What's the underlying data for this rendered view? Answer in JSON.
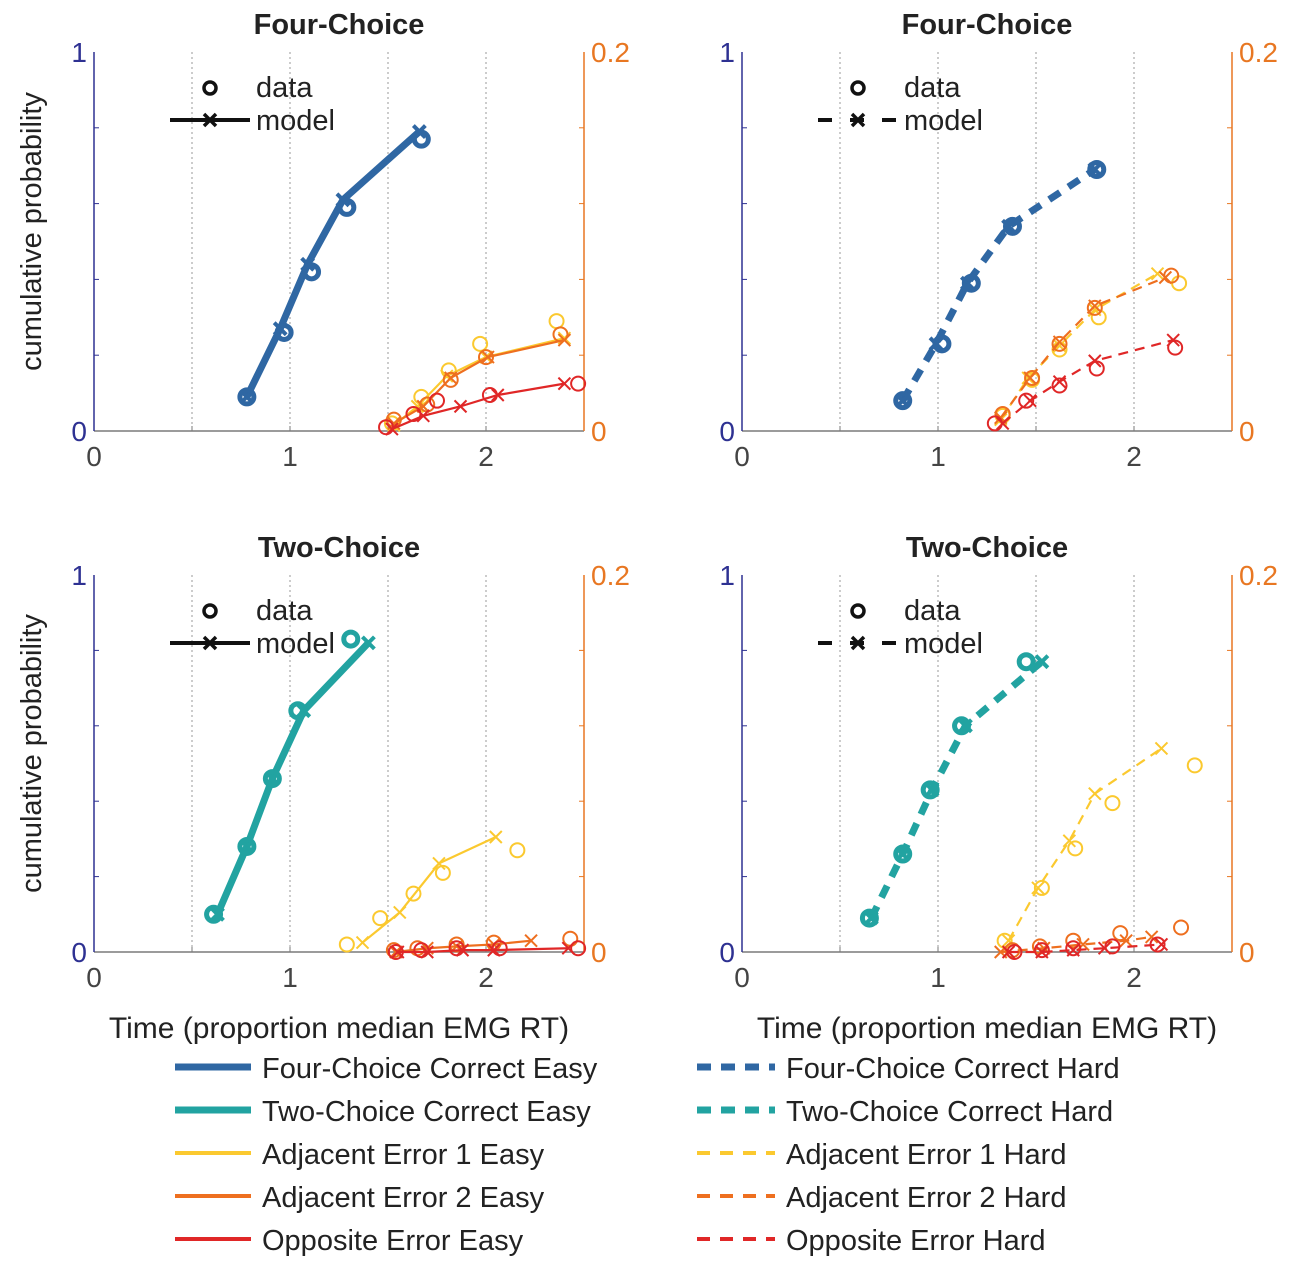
{
  "legend_top": {
    "data_label": "data",
    "model_label": "model"
  },
  "legend_bottom": [
    {
      "label": "Four-Choice Correct Easy",
      "color": "#2f67a3",
      "style": "solid-thick"
    },
    {
      "label": "Four-Choice Correct Hard",
      "color": "#2f67a3",
      "style": "dashed-thick"
    },
    {
      "label": "Two-Choice Correct Easy",
      "color": "#22a3a1",
      "style": "solid-thick"
    },
    {
      "label": "Two-Choice Correct Hard",
      "color": "#22a3a1",
      "style": "dashed-thick"
    },
    {
      "label": "Adjacent Error 1 Easy",
      "color": "#fbc92f",
      "style": "solid"
    },
    {
      "label": "Adjacent Error 1 Hard",
      "color": "#fbc92f",
      "style": "dashed"
    },
    {
      "label": "Adjacent Error 2 Easy",
      "color": "#ee6f1f",
      "style": "solid"
    },
    {
      "label": "Adjacent Error 2 Hard",
      "color": "#ee6f1f",
      "style": "dashed"
    },
    {
      "label": "Opposite Error Easy",
      "color": "#e02727",
      "style": "solid"
    },
    {
      "label": "Opposite Error Hard",
      "color": "#e02727",
      "style": "dashed"
    }
  ],
  "colors": {
    "four_correct": "#2f67a3",
    "two_correct": "#22a3a1",
    "adj1": "#fbc92f",
    "adj2": "#ee6f1f",
    "opposite": "#e02727",
    "left_axis": "#2e3192",
    "right_axis": "#e87722"
  },
  "chart_data": [
    {
      "type": "line",
      "title": "Four-Choice",
      "xlabel": "",
      "ylabel": "cumulative probability",
      "xlim": [
        0,
        2.5
      ],
      "ylim": [
        0,
        1
      ],
      "y2lim": [
        0,
        0.2
      ],
      "xticks": [
        "0",
        "1",
        "2"
      ],
      "yticks": [
        "0",
        "1"
      ],
      "y2ticks": [
        "0",
        "0.2"
      ],
      "line_style": "solid",
      "correct": {
        "color_key": "four_correct",
        "data": [
          [
            0.78,
            0.09
          ],
          [
            0.97,
            0.26
          ],
          [
            1.11,
            0.42
          ],
          [
            1.29,
            0.59
          ],
          [
            1.67,
            0.77
          ]
        ],
        "model": [
          [
            0.78,
            0.09
          ],
          [
            0.95,
            0.27
          ],
          [
            1.09,
            0.44
          ],
          [
            1.27,
            0.61
          ],
          [
            1.66,
            0.79
          ]
        ]
      },
      "errors": [
        {
          "color_key": "adj1",
          "data": [
            [
              1.52,
              0.004
            ],
            [
              1.67,
              0.018
            ],
            [
              1.81,
              0.032
            ],
            [
              1.97,
              0.046
            ],
            [
              2.36,
              0.058
            ]
          ],
          "model": [
            [
              1.53,
              0.003
            ],
            [
              1.65,
              0.013
            ],
            [
              1.8,
              0.029
            ],
            [
              2.0,
              0.039
            ],
            [
              2.4,
              0.049
            ]
          ]
        },
        {
          "color_key": "adj2",
          "data": [
            [
              1.53,
              0.006
            ],
            [
              1.7,
              0.014
            ],
            [
              1.82,
              0.027
            ],
            [
              2.0,
              0.039
            ],
            [
              2.38,
              0.051
            ]
          ],
          "model": [
            [
              1.53,
              0.004
            ],
            [
              1.68,
              0.013
            ],
            [
              1.82,
              0.028
            ],
            [
              2.01,
              0.039
            ],
            [
              2.4,
              0.048
            ]
          ]
        },
        {
          "color_key": "opposite",
          "data": [
            [
              1.49,
              0.002
            ],
            [
              1.63,
              0.009
            ],
            [
              1.75,
              0.016
            ],
            [
              2.02,
              0.019
            ],
            [
              2.47,
              0.025
            ]
          ],
          "model": [
            [
              1.52,
              0.001
            ],
            [
              1.68,
              0.008
            ],
            [
              1.87,
              0.013
            ],
            [
              2.06,
              0.019
            ],
            [
              2.4,
              0.025
            ]
          ]
        }
      ]
    },
    {
      "type": "line",
      "title": "Four-Choice",
      "xlabel": "",
      "ylabel": "",
      "xlim": [
        0,
        2.5
      ],
      "ylim": [
        0,
        1
      ],
      "y2lim": [
        0,
        0.2
      ],
      "xticks": [
        "0",
        "1",
        "2"
      ],
      "yticks": [
        "0",
        "1"
      ],
      "y2ticks": [
        "0",
        "0.2"
      ],
      "line_style": "dashed",
      "correct": {
        "color_key": "four_correct",
        "data": [
          [
            0.82,
            0.08
          ],
          [
            1.02,
            0.23
          ],
          [
            1.17,
            0.39
          ],
          [
            1.38,
            0.54
          ],
          [
            1.81,
            0.69
          ]
        ],
        "model": [
          [
            0.82,
            0.08
          ],
          [
            0.99,
            0.23
          ],
          [
            1.15,
            0.39
          ],
          [
            1.36,
            0.54
          ],
          [
            1.8,
            0.69
          ]
        ]
      },
      "errors": [
        {
          "color_key": "adj1",
          "data": [
            [
              1.33,
              0.008
            ],
            [
              1.48,
              0.027
            ],
            [
              1.62,
              0.043
            ],
            [
              1.82,
              0.06
            ],
            [
              2.23,
              0.078
            ]
          ],
          "model": [
            [
              1.32,
              0.006
            ],
            [
              1.46,
              0.028
            ],
            [
              1.62,
              0.045
            ],
            [
              1.8,
              0.064
            ],
            [
              2.12,
              0.083
            ]
          ]
        },
        {
          "color_key": "adj2",
          "data": [
            [
              1.33,
              0.009
            ],
            [
              1.48,
              0.028
            ],
            [
              1.62,
              0.046
            ],
            [
              1.8,
              0.065
            ],
            [
              2.19,
              0.082
            ]
          ],
          "model": [
            [
              1.32,
              0.007
            ],
            [
              1.47,
              0.028
            ],
            [
              1.62,
              0.047
            ],
            [
              1.8,
              0.066
            ],
            [
              2.16,
              0.081
            ]
          ]
        },
        {
          "color_key": "opposite",
          "data": [
            [
              1.29,
              0.004
            ],
            [
              1.45,
              0.016
            ],
            [
              1.62,
              0.024
            ],
            [
              1.81,
              0.033
            ],
            [
              2.21,
              0.044
            ]
          ],
          "model": [
            [
              1.33,
              0.004
            ],
            [
              1.47,
              0.016
            ],
            [
              1.62,
              0.026
            ],
            [
              1.8,
              0.037
            ],
            [
              2.2,
              0.048
            ]
          ]
        }
      ]
    },
    {
      "type": "line",
      "title": "Two-Choice",
      "xlabel": "Time (proportion median EMG RT)",
      "ylabel": "cumulative probability",
      "xlim": [
        0,
        2.5
      ],
      "ylim": [
        0,
        1
      ],
      "y2lim": [
        0,
        0.2
      ],
      "xticks": [
        "0",
        "1",
        "2"
      ],
      "yticks": [
        "0",
        "1"
      ],
      "y2ticks": [
        "0",
        "0.2"
      ],
      "line_style": "solid",
      "correct": {
        "color_key": "two_correct",
        "data": [
          [
            0.61,
            0.1
          ],
          [
            0.78,
            0.28
          ],
          [
            0.91,
            0.46
          ],
          [
            1.04,
            0.64
          ],
          [
            1.31,
            0.83
          ]
        ],
        "model": [
          [
            0.63,
            0.1
          ],
          [
            0.78,
            0.28
          ],
          [
            0.91,
            0.46
          ],
          [
            1.07,
            0.64
          ],
          [
            1.4,
            0.82
          ]
        ]
      },
      "errors": [
        {
          "color_key": "adj1",
          "data": [
            [
              1.29,
              0.004
            ],
            [
              1.46,
              0.018
            ],
            [
              1.63,
              0.031
            ],
            [
              1.78,
              0.042
            ],
            [
              2.16,
              0.054
            ]
          ],
          "model": [
            [
              1.37,
              0.005
            ],
            [
              1.56,
              0.021
            ],
            [
              1.76,
              0.047
            ],
            [
              2.05,
              0.061
            ]
          ]
        },
        {
          "color_key": "adj2",
          "data": [
            [
              1.53,
              0.001
            ],
            [
              1.65,
              0.002
            ],
            [
              1.85,
              0.004
            ],
            [
              2.04,
              0.005
            ],
            [
              2.43,
              0.007
            ]
          ],
          "model": [
            [
              1.54,
              0.0
            ],
            [
              1.7,
              0.002
            ],
            [
              1.85,
              0.003
            ],
            [
              2.04,
              0.004
            ],
            [
              2.23,
              0.006
            ]
          ]
        },
        {
          "color_key": "opposite",
          "data": [
            [
              1.54,
              0.0
            ],
            [
              1.67,
              0.001
            ],
            [
              1.85,
              0.002
            ],
            [
              2.07,
              0.002
            ],
            [
              2.47,
              0.002
            ]
          ],
          "model": [
            [
              1.55,
              0.0
            ],
            [
              1.7,
              0.0
            ],
            [
              1.88,
              0.001
            ],
            [
              2.04,
              0.001
            ],
            [
              2.42,
              0.002
            ]
          ]
        }
      ]
    },
    {
      "type": "line",
      "title": "Two-Choice",
      "xlabel": "Time (proportion median EMG RT)",
      "ylabel": "",
      "xlim": [
        0,
        2.5
      ],
      "ylim": [
        0,
        1
      ],
      "y2lim": [
        0,
        0.2
      ],
      "xticks": [
        "0",
        "1",
        "2"
      ],
      "yticks": [
        "0",
        "1"
      ],
      "y2ticks": [
        "0",
        "0.2"
      ],
      "line_style": "dashed",
      "correct": {
        "color_key": "two_correct",
        "data": [
          [
            0.65,
            0.09
          ],
          [
            0.82,
            0.26
          ],
          [
            0.96,
            0.43
          ],
          [
            1.12,
            0.6
          ],
          [
            1.45,
            0.77
          ]
        ],
        "model": [
          [
            0.66,
            0.09
          ],
          [
            0.82,
            0.26
          ],
          [
            0.97,
            0.43
          ],
          [
            1.14,
            0.6
          ],
          [
            1.53,
            0.77
          ]
        ]
      },
      "errors": [
        {
          "color_key": "adj1",
          "data": [
            [
              1.34,
              0.006
            ],
            [
              1.53,
              0.034
            ],
            [
              1.7,
              0.055
            ],
            [
              1.89,
              0.079
            ],
            [
              2.31,
              0.099
            ]
          ],
          "model": [
            [
              1.36,
              0.006
            ],
            [
              1.51,
              0.034
            ],
            [
              1.67,
              0.059
            ],
            [
              1.8,
              0.084
            ],
            [
              2.14,
              0.108
            ]
          ]
        },
        {
          "color_key": "adj2",
          "data": [
            [
              1.38,
              0.001
            ],
            [
              1.52,
              0.003
            ],
            [
              1.69,
              0.006
            ],
            [
              1.93,
              0.01
            ],
            [
              2.24,
              0.013
            ]
          ],
          "model": [
            [
              1.32,
              0.0
            ],
            [
              1.54,
              0.002
            ],
            [
              1.74,
              0.004
            ],
            [
              1.96,
              0.006
            ],
            [
              2.09,
              0.008
            ]
          ]
        },
        {
          "color_key": "opposite",
          "data": [
            [
              1.39,
              0.0
            ],
            [
              1.53,
              0.001
            ],
            [
              1.69,
              0.002
            ],
            [
              1.89,
              0.003
            ],
            [
              2.12,
              0.004
            ]
          ],
          "model": [
            [
              1.36,
              0.0
            ],
            [
              1.53,
              0.0
            ],
            [
              1.69,
              0.001
            ],
            [
              1.85,
              0.002
            ],
            [
              2.14,
              0.004
            ]
          ]
        }
      ]
    }
  ]
}
